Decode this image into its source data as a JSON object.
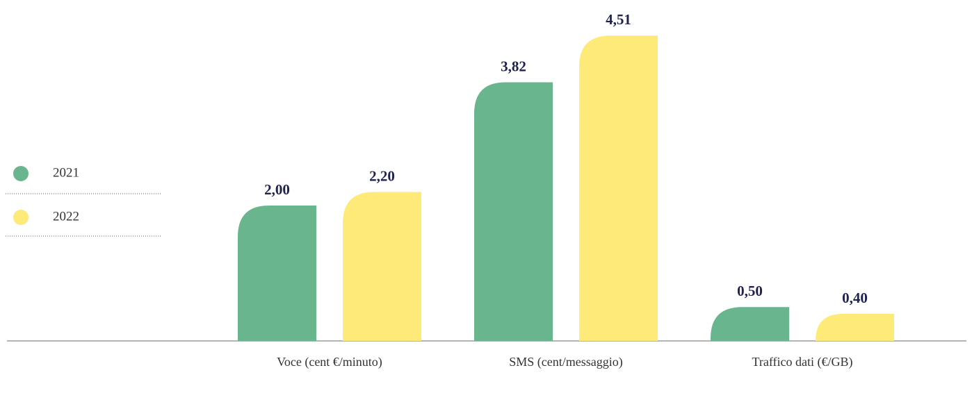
{
  "chart_data": {
    "type": "bar",
    "categories": [
      "Voce (cent €/minuto)",
      "SMS (cent/messaggio)",
      "Traffico dati (€/GB)"
    ],
    "series": [
      {
        "name": "2021",
        "color": "#69b58e",
        "values": [
          2.0,
          3.82,
          0.5
        ],
        "value_labels": [
          "2,00",
          "3,82",
          "0,50"
        ]
      },
      {
        "name": "2022",
        "color": "#fdea78",
        "values": [
          2.2,
          4.51,
          0.4
        ],
        "value_labels": [
          "2,20",
          "4,51",
          "0,40"
        ]
      }
    ]
  }
}
